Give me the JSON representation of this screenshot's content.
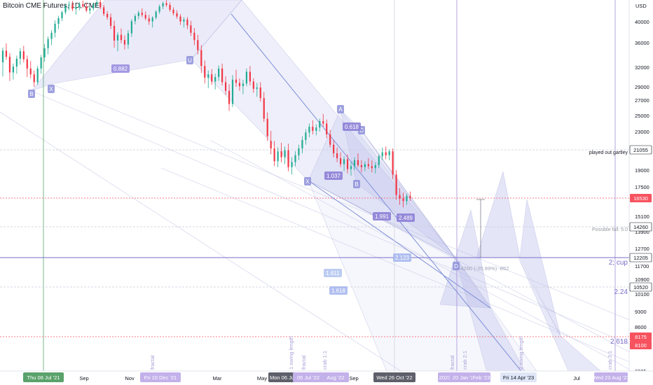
{
  "header": {
    "title": "Bitcoin CME Futures, 1D, CME"
  },
  "chart_data": {
    "type": "candlestick",
    "y_axis": {
      "unit": "USD",
      "scale": "log",
      "ylim": [
        6925,
        48000
      ],
      "ticks": [
        40000,
        36000,
        32000,
        29000,
        27000,
        25000,
        23000,
        19000,
        17500,
        15100,
        13900,
        12700,
        11700,
        10900,
        10100,
        9300,
        8600,
        8100,
        6925
      ],
      "tick_labels": [
        "40000",
        "36000",
        "32000",
        "29000",
        "27000",
        "25000",
        "23000",
        "19000",
        "17500",
        "15100",
        "13900",
        "12700",
        "11700",
        "10900",
        "10100",
        "9300",
        "8600",
        "8100",
        "6925"
      ]
    },
    "x_axis": {
      "labels": [
        "Sep",
        "Nov",
        "Mar",
        "May",
        "Sep",
        "Jul"
      ],
      "highlighted_labels": [
        "Thu 08 Jul '21",
        "Fri 10 Dec '21",
        "Mon 06 Jun '22",
        "05 Jul '22",
        "Aug '22",
        "Wed 26 Oct '22",
        "2023",
        "20 Jan '23",
        "Feb '23",
        "Fri 14 Apr '23",
        "Wed 23 Aug '23"
      ]
    },
    "price_markers": [
      {
        "value": "21055",
        "label": "played out gartley",
        "color": "#f0f3fa"
      },
      {
        "value": "16530",
        "label": "",
        "color": "#f7525f"
      },
      {
        "value": "14260",
        "label": "Possible fall: 5.0",
        "color": "#f0f3fa"
      },
      {
        "value": "12205",
        "label": "2; cup",
        "color": "#e0e3eb"
      },
      {
        "value": "10520",
        "label": "2.24",
        "color": "#e0e3eb"
      },
      {
        "value": "8175",
        "label": "2.618",
        "color": "#f7525f"
      },
      {
        "value": "8100",
        "label": "",
        "color": "#f7525f"
      }
    ],
    "pattern_points": [
      "B",
      "X",
      "U",
      "A",
      "C",
      "X",
      "B",
      "D"
    ],
    "ratios": [
      "0.882",
      "0.618",
      "1.037",
      "1.991",
      "2.489",
      "2.123",
      "1.611",
      "1.618"
    ],
    "measure_label": "-4260 (-25.99%) -852",
    "vertical_labels": [
      "fractal",
      "1 swing length",
      "fractal",
      "crab 1:1",
      "fractal",
      "crab 2:1",
      "2 swing length",
      "crab 3:1"
    ],
    "candles": [
      [
        32800,
        35200,
        30600,
        34700
      ],
      [
        34700,
        35900,
        33200,
        33700
      ],
      [
        33700,
        34300,
        29900,
        31200
      ],
      [
        31200,
        32600,
        30100,
        32100
      ],
      [
        32100,
        33900,
        31000,
        33400
      ],
      [
        33400,
        35100,
        32400,
        34600
      ],
      [
        34600,
        35500,
        32800,
        33300
      ],
      [
        33300,
        33900,
        30500,
        31800
      ],
      [
        31800,
        33000,
        30300,
        30900
      ],
      [
        30900,
        31500,
        29000,
        29700
      ],
      [
        29700,
        32200,
        29300,
        31800
      ],
      [
        31800,
        34000,
        31000,
        33600
      ],
      [
        33600,
        35800,
        32900,
        35100
      ],
      [
        35100,
        37200,
        34100,
        36700
      ],
      [
        36700,
        38400,
        35600,
        37900
      ],
      [
        37900,
        40500,
        37000,
        39600
      ],
      [
        39600,
        42200,
        38600,
        41300
      ],
      [
        41300,
        44000,
        40200,
        43500
      ],
      [
        43500,
        46600,
        42700,
        45800
      ],
      [
        45800,
        47500,
        44200,
        46300
      ],
      [
        46300,
        47600,
        43900,
        44700
      ],
      [
        44700,
        46100,
        42600,
        45300
      ],
      [
        45300,
        47200,
        44200,
        46500
      ],
      [
        46500,
        47800,
        45000,
        45600
      ],
      [
        45600,
        46800,
        43500,
        44100
      ],
      [
        44100,
        45500,
        42800,
        44900
      ],
      [
        44900,
        47000,
        44000,
        46400
      ],
      [
        46400,
        48000,
        45100,
        47200
      ],
      [
        47200,
        48000,
        44600,
        45300
      ],
      [
        45300,
        46200,
        42100,
        42900
      ],
      [
        42900,
        43900,
        40700,
        41600
      ],
      [
        41600,
        43000,
        38600,
        39200
      ],
      [
        39200,
        40400,
        35200,
        36400
      ],
      [
        36400,
        38000,
        34600,
        37500
      ],
      [
        37500,
        38700,
        35900,
        36500
      ],
      [
        36500,
        37400,
        34900,
        35700
      ],
      [
        35700,
        38400,
        35000,
        37800
      ],
      [
        37800,
        40900,
        37100,
        40200
      ],
      [
        40200,
        42800,
        39500,
        42100
      ],
      [
        42100,
        44100,
        40900,
        43300
      ],
      [
        43300,
        44900,
        41700,
        42500
      ],
      [
        42500,
        43800,
        40600,
        41200
      ],
      [
        41200,
        42500,
        39400,
        40100
      ],
      [
        40100,
        42000,
        38900,
        41500
      ],
      [
        41500,
        44200,
        40800,
        43700
      ],
      [
        43700,
        46300,
        42900,
        45600
      ],
      [
        45600,
        47400,
        44600,
        46800
      ],
      [
        46800,
        47900,
        45500,
        46200
      ],
      [
        46200,
        47100,
        43700,
        44400
      ],
      [
        44400,
        45300,
        42300,
        43100
      ],
      [
        43100,
        44200,
        41100,
        41900
      ],
      [
        41900,
        42800,
        39400,
        40100
      ],
      [
        40100,
        41600,
        38900,
        40800
      ],
      [
        40800,
        41700,
        38600,
        39300
      ],
      [
        39300,
        40300,
        37300,
        37900
      ],
      [
        37900,
        38800,
        35600,
        36500
      ],
      [
        36500,
        37500,
        34100,
        34800
      ],
      [
        34800,
        35600,
        31100,
        32200
      ],
      [
        32200,
        33100,
        29500,
        30400
      ],
      [
        30400,
        31500,
        28800,
        30900
      ],
      [
        30900,
        31700,
        29300,
        29800
      ],
      [
        29800,
        31000,
        28600,
        30500
      ],
      [
        30500,
        32300,
        29900,
        31800
      ],
      [
        31800,
        32600,
        29200,
        29700
      ],
      [
        29700,
        30600,
        27800,
        28400
      ],
      [
        28400,
        29400,
        25600,
        26500
      ],
      [
        26500,
        30800,
        26100,
        30100
      ],
      [
        30100,
        31600,
        29000,
        29600
      ],
      [
        29600,
        30300,
        28400,
        29100
      ],
      [
        29100,
        30100,
        27900,
        29500
      ],
      [
        29500,
        31800,
        29100,
        31300
      ],
      [
        31300,
        32200,
        29200,
        29800
      ],
      [
        29800,
        30300,
        28100,
        28700
      ],
      [
        28700,
        29600,
        27500,
        28900
      ],
      [
        28900,
        29700,
        26800,
        27300
      ],
      [
        27300,
        28200,
        24200,
        24600
      ],
      [
        24600,
        25400,
        22000,
        22500
      ],
      [
        22000,
        23100,
        20600,
        21200
      ],
      [
        21200,
        22000,
        19400,
        19900
      ],
      [
        19900,
        21300,
        19300,
        20900
      ],
      [
        20900,
        21800,
        19800,
        20300
      ],
      [
        20300,
        21400,
        19600,
        21000
      ],
      [
        21000,
        21700,
        18900,
        19300
      ],
      [
        19300,
        20300,
        18600,
        19800
      ],
      [
        19800,
        20900,
        19400,
        20500
      ],
      [
        20500,
        21600,
        20000,
        21200
      ],
      [
        21200,
        22500,
        20700,
        22100
      ],
      [
        22100,
        23300,
        21600,
        22900
      ],
      [
        22900,
        24000,
        22400,
        23600
      ],
      [
        23600,
        24400,
        22700,
        23100
      ],
      [
        23100,
        23900,
        22600,
        23500
      ],
      [
        23500,
        24600,
        23000,
        24300
      ],
      [
        24300,
        25200,
        23600,
        24000
      ],
      [
        24000,
        24500,
        22300,
        22700
      ],
      [
        22700,
        23200,
        21300,
        21600
      ],
      [
        21600,
        22100,
        20300,
        20700
      ],
      [
        20700,
        21300,
        19800,
        20200
      ],
      [
        20200,
        20800,
        19300,
        19600
      ],
      [
        19600,
        20400,
        18900,
        20100
      ],
      [
        20100,
        20600,
        18700,
        19100
      ],
      [
        19100,
        19800,
        18500,
        19400
      ],
      [
        19400,
        20300,
        19000,
        20000
      ],
      [
        20000,
        20700,
        19300,
        19500
      ],
      [
        19500,
        20000,
        18800,
        19300
      ],
      [
        19300,
        19900,
        18900,
        19600
      ],
      [
        19600,
        20200,
        19100,
        19400
      ],
      [
        19400,
        20000,
        18800,
        19200
      ],
      [
        19200,
        19800,
        18700,
        19500
      ],
      [
        19500,
        20600,
        19200,
        20400
      ],
      [
        20400,
        21300,
        20000,
        20800
      ],
      [
        20800,
        21400,
        20100,
        20500
      ],
      [
        20500,
        21100,
        20000,
        20900
      ],
      [
        20900,
        21200,
        18200,
        18600
      ],
      [
        18600,
        19000,
        16400,
        16800
      ],
      [
        16800,
        17400,
        16000,
        16500
      ],
      [
        16500,
        17000,
        15800,
        16300
      ],
      [
        16300,
        16900,
        16000,
        16700
      ],
      [
        16700,
        17100,
        16300,
        16530
      ]
    ]
  }
}
